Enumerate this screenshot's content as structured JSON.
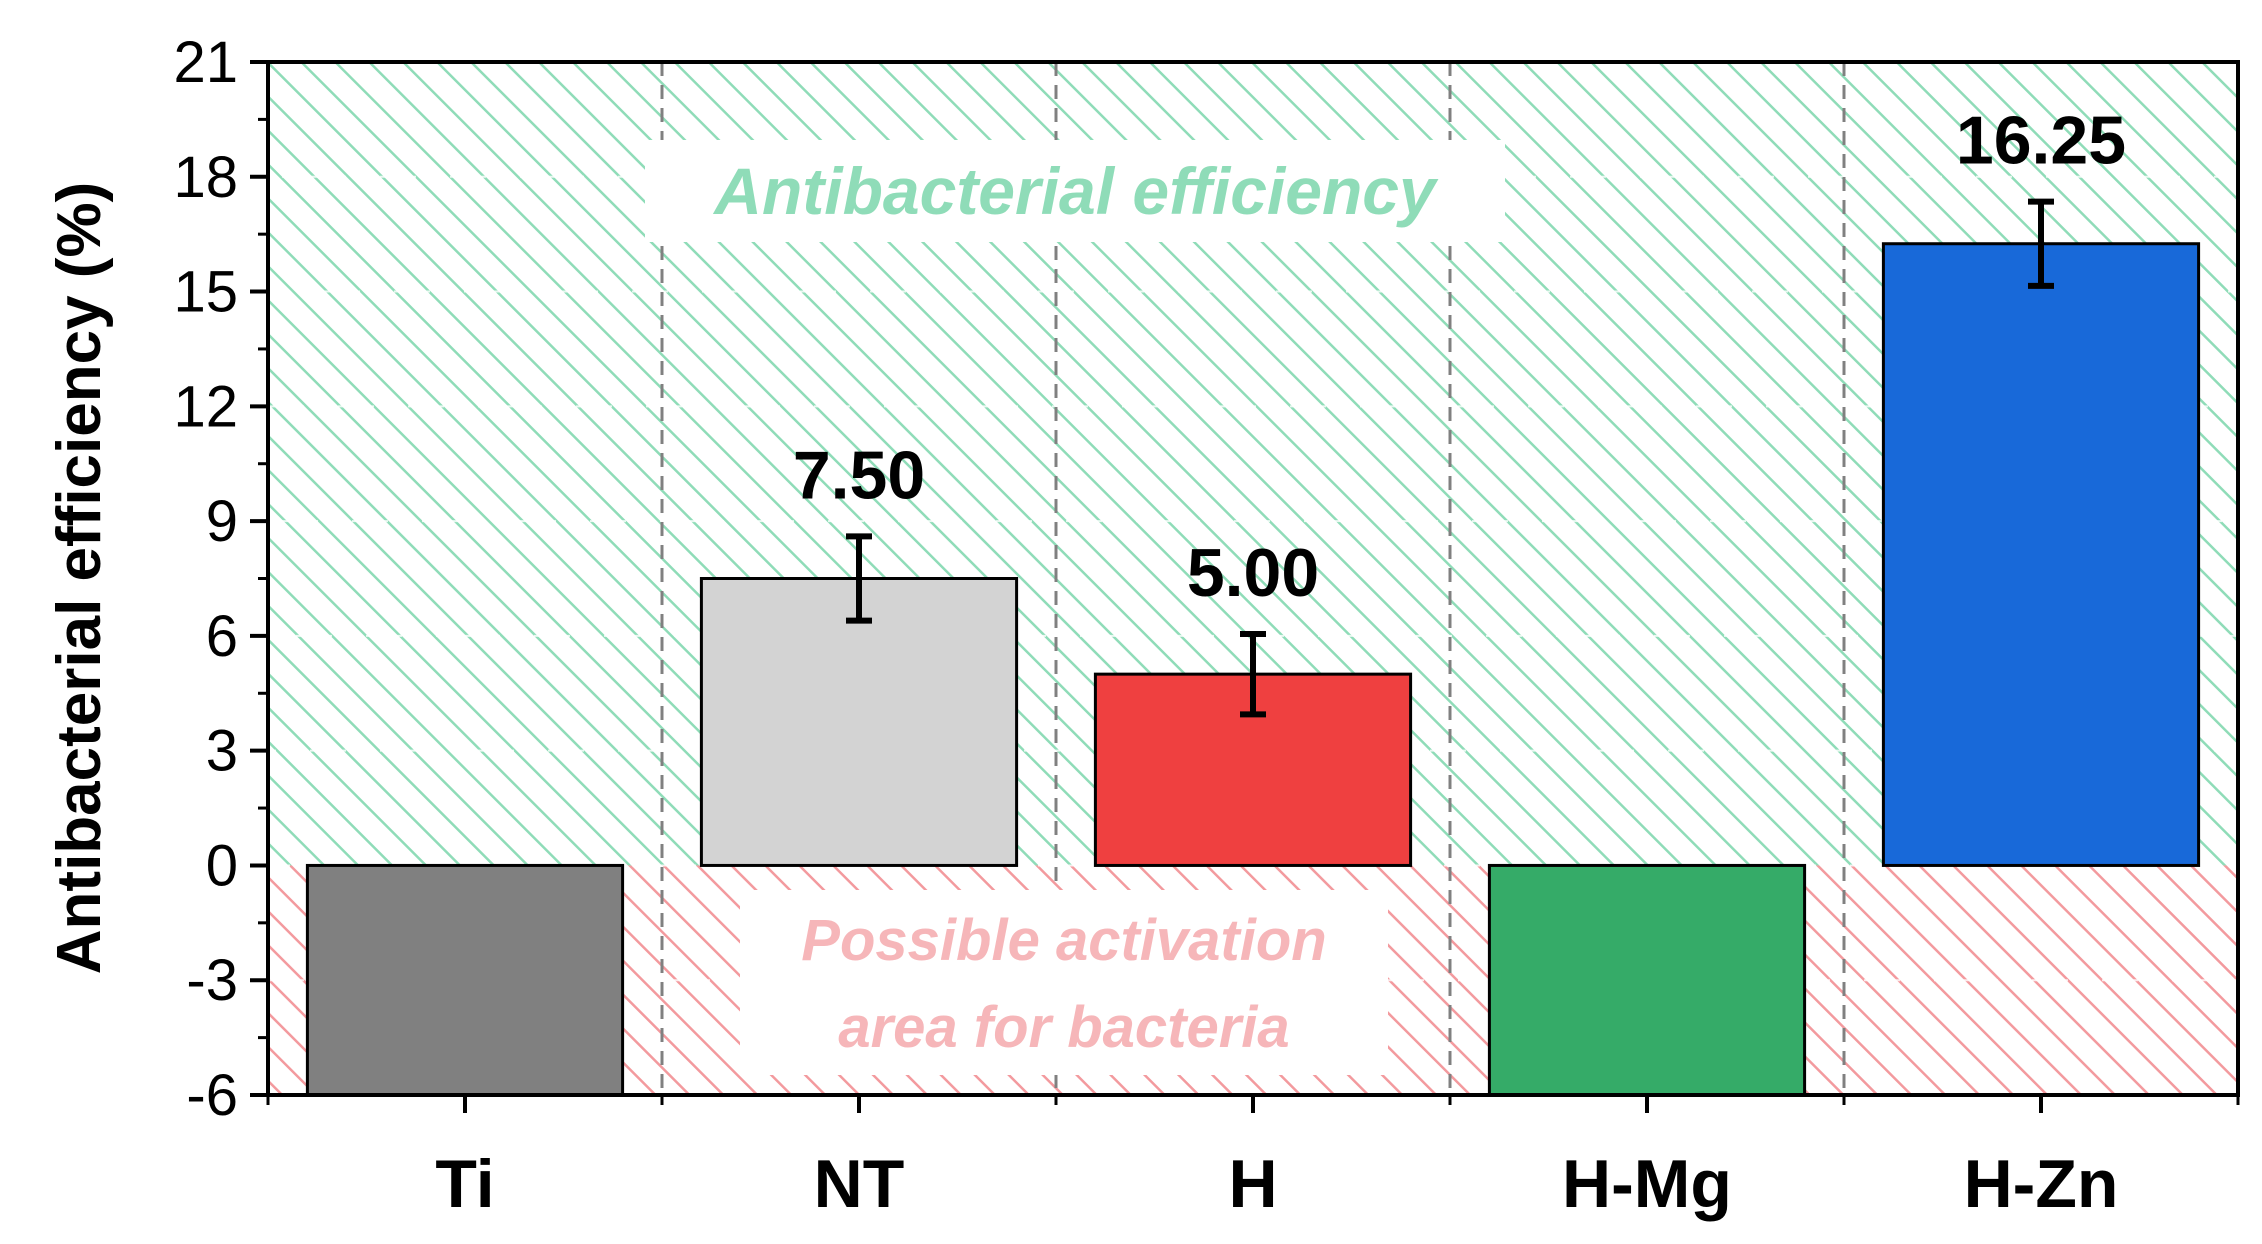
{
  "chart_data": {
    "type": "bar",
    "ylabel": "Antibacterial efficiency (%)",
    "xlabel": "",
    "ylim": [
      -6,
      21
    ],
    "yticks": [
      -6,
      -3,
      0,
      3,
      6,
      9,
      12,
      15,
      18,
      21
    ],
    "categories": [
      "Ti",
      "NT",
      "H",
      "H-Mg",
      "H-Zn"
    ],
    "values": [
      -6,
      7.5,
      5.0,
      -6,
      16.25
    ],
    "errors": [
      null,
      1.1,
      1.05,
      null,
      1.1
    ],
    "data_labels": [
      null,
      "7.50",
      "5.00",
      null,
      "16.25"
    ],
    "bar_colors": [
      "#808080",
      "#d3d3d3",
      "#ef4040",
      "#35ab68",
      "#1869d9"
    ],
    "regions": [
      {
        "name": "antibacterial",
        "text": "Antibacterial efficiency",
        "y_range": [
          0,
          21
        ],
        "color": "#8fdcb8"
      },
      {
        "name": "activation",
        "text_lines": [
          "Possible activation",
          "area for bacteria"
        ],
        "y_range": [
          -6,
          0
        ],
        "color": "#f39a9e"
      }
    ],
    "grid": true,
    "legend": "none"
  }
}
